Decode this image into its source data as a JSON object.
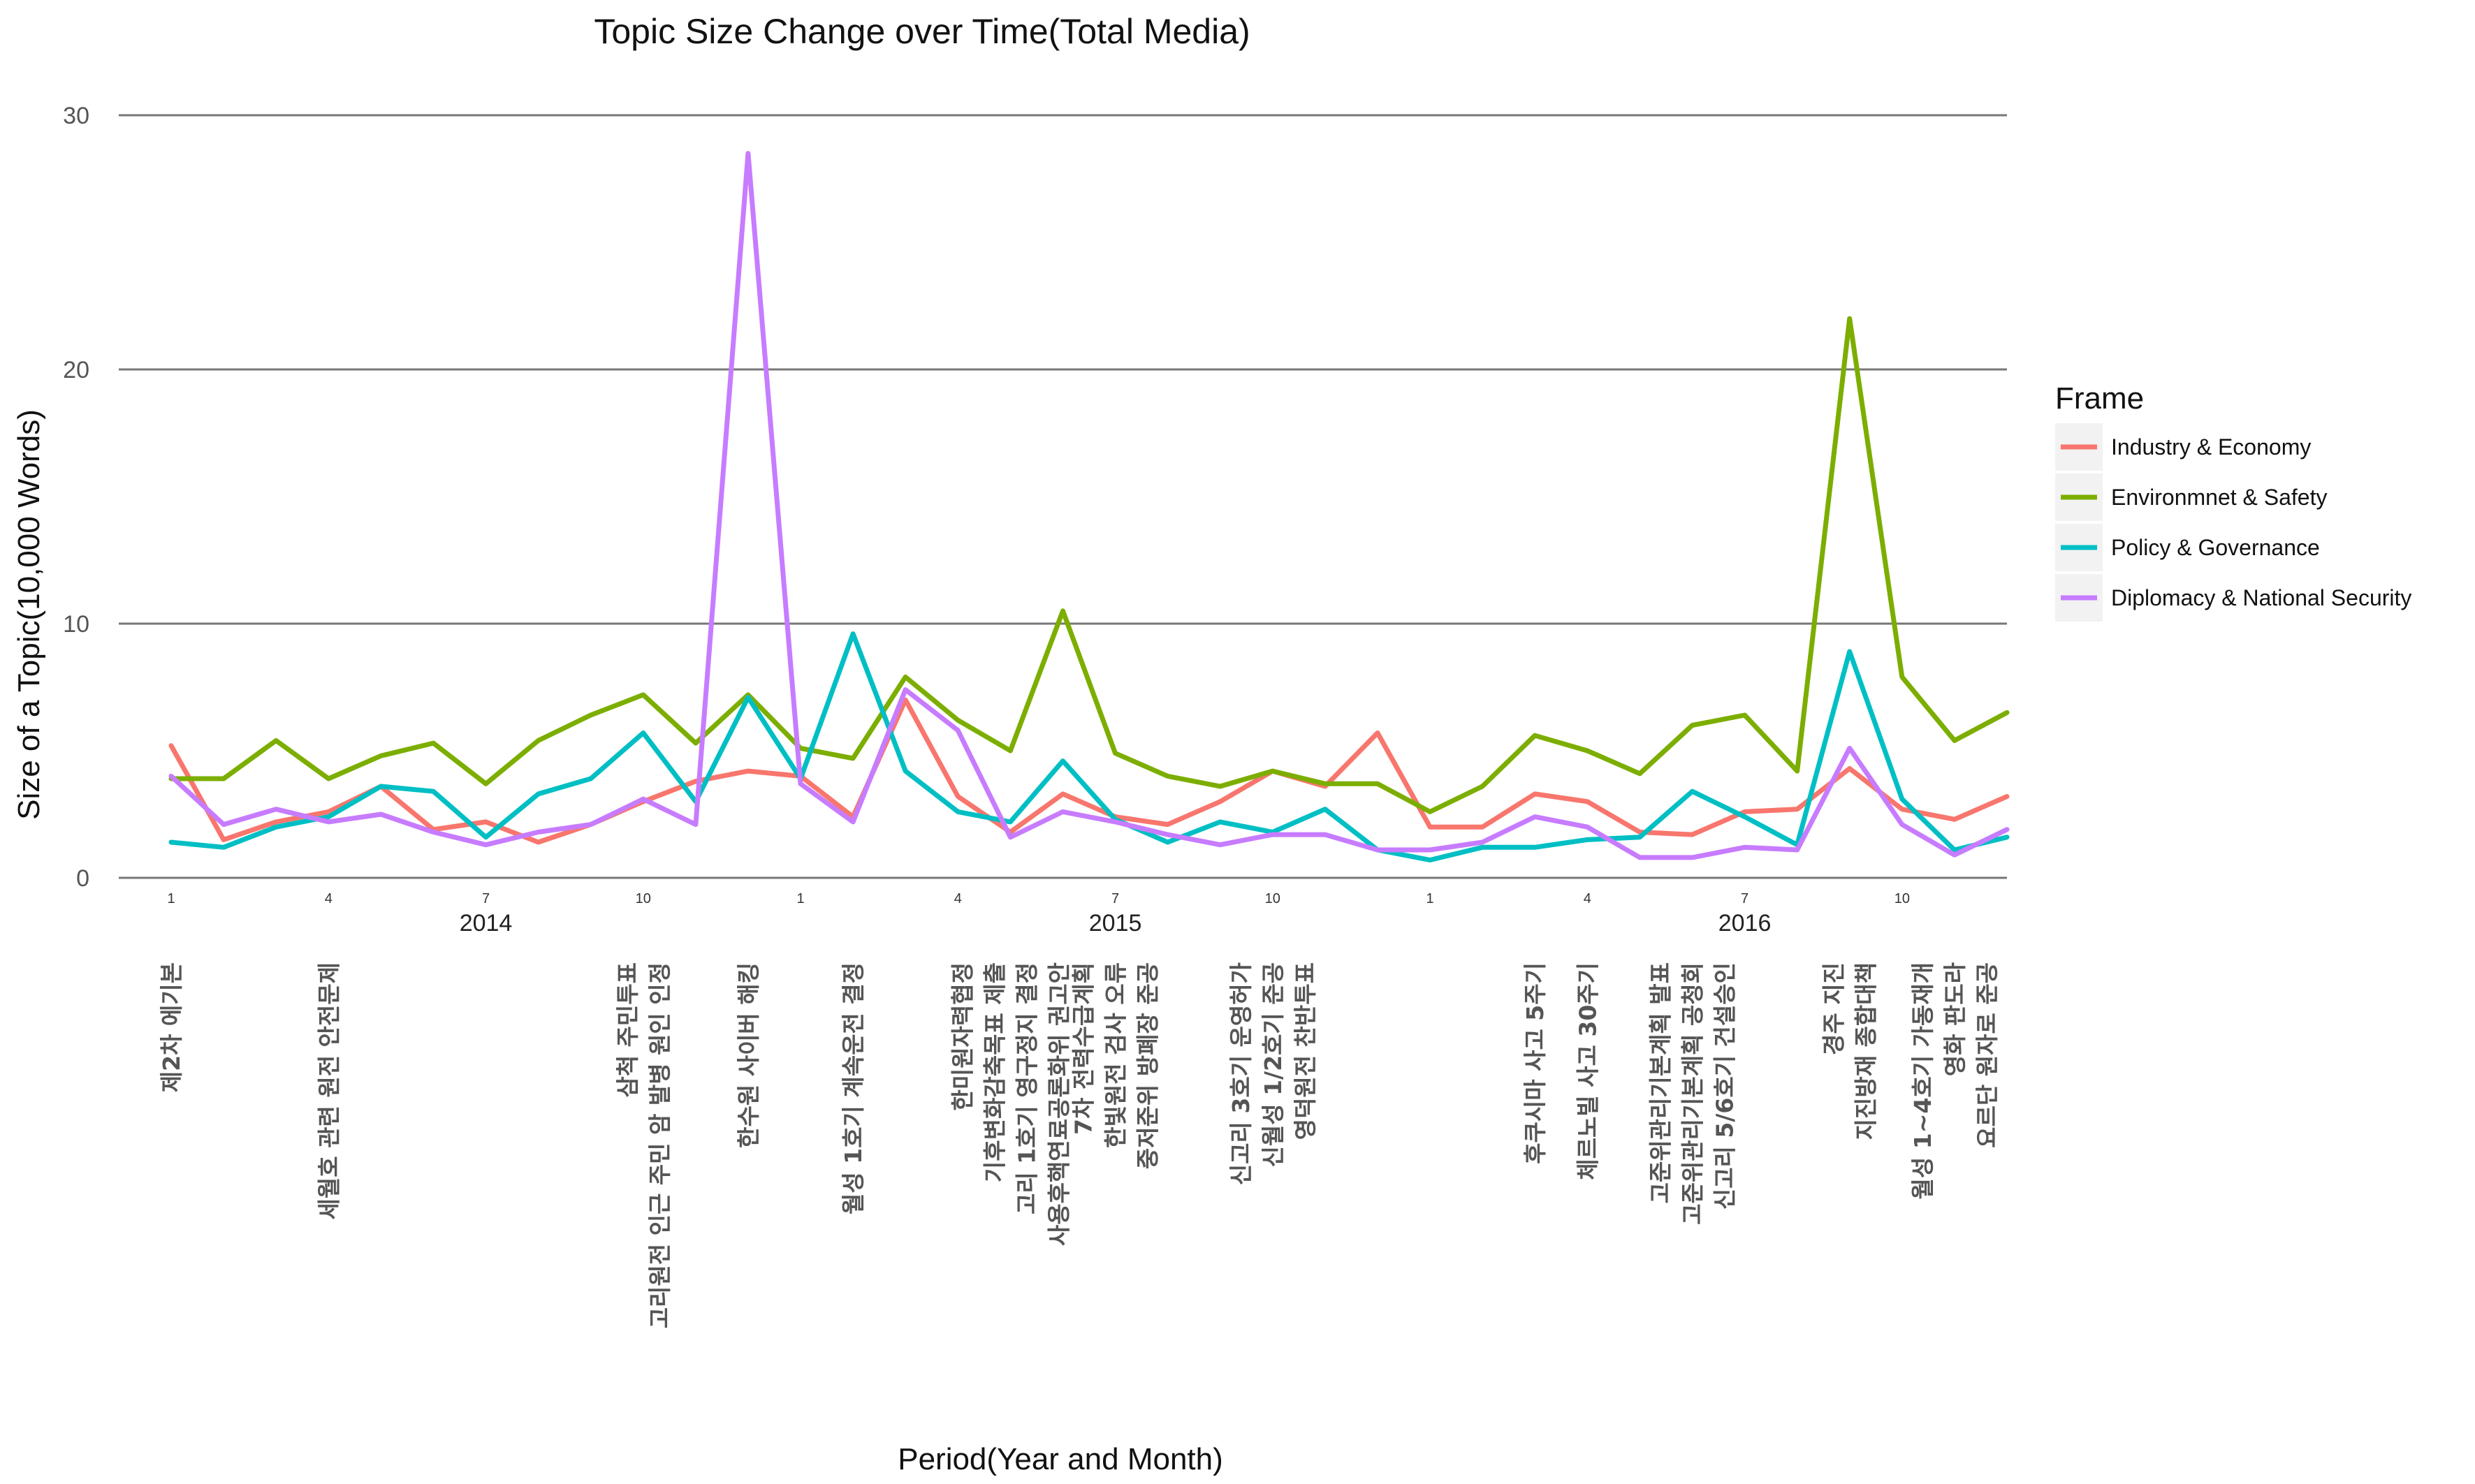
{
  "chart_data": {
    "type": "line",
    "title": "Topic Size Change over Time(Total Media)",
    "xlabel": "Period(Year and Month)",
    "ylabel": "Size of a Topic(10,000 Words)",
    "ylim": [
      0,
      30
    ],
    "yticks": [
      0,
      10,
      20,
      30
    ],
    "grid": "horizontal",
    "legend_position": "right",
    "legend_title": "Frame",
    "x": [
      "2014-01",
      "2014-02",
      "2014-03",
      "2014-04",
      "2014-05",
      "2014-06",
      "2014-07",
      "2014-08",
      "2014-09",
      "2014-10",
      "2014-11",
      "2014-12",
      "2015-01",
      "2015-02",
      "2015-03",
      "2015-04",
      "2015-05",
      "2015-06",
      "2015-07",
      "2015-08",
      "2015-09",
      "2015-10",
      "2015-11",
      "2015-12",
      "2016-01",
      "2016-02",
      "2016-03",
      "2016-04",
      "2016-05",
      "2016-06",
      "2016-07",
      "2016-08",
      "2016-09",
      "2016-10",
      "2016-11",
      "2016-12"
    ],
    "month_ticks": [
      {
        "x": "2014-01",
        "label": "1"
      },
      {
        "x": "2014-04",
        "label": "4"
      },
      {
        "x": "2014-07",
        "label": "7"
      },
      {
        "x": "2014-10",
        "label": "10"
      },
      {
        "x": "2015-01",
        "label": "1"
      },
      {
        "x": "2015-04",
        "label": "4"
      },
      {
        "x": "2015-07",
        "label": "7"
      },
      {
        "x": "2015-10",
        "label": "10"
      },
      {
        "x": "2016-01",
        "label": "1"
      },
      {
        "x": "2016-04",
        "label": "4"
      },
      {
        "x": "2016-07",
        "label": "7"
      },
      {
        "x": "2016-10",
        "label": "10"
      }
    ],
    "year_ticks": [
      {
        "x": "2014-07",
        "label": "2014"
      },
      {
        "x": "2015-07",
        "label": "2015"
      },
      {
        "x": "2016-07",
        "label": "2016"
      }
    ],
    "series": [
      {
        "name": "Industry & Economy",
        "color": "#F8766D",
        "values": [
          5.2,
          1.5,
          2.2,
          2.6,
          3.6,
          1.9,
          2.2,
          1.4,
          2.1,
          3.0,
          3.8,
          4.2,
          4.0,
          2.4,
          7.0,
          3.2,
          1.8,
          3.3,
          2.4,
          2.1,
          3.0,
          4.2,
          3.6,
          5.7,
          2.0,
          2.0,
          3.3,
          3.0,
          1.8,
          1.7,
          2.6,
          2.7,
          4.3,
          2.7,
          2.3,
          3.2
        ]
      },
      {
        "name": "Environmnet & Safety",
        "color": "#7CAE00",
        "values": [
          3.9,
          3.9,
          5.4,
          3.9,
          4.8,
          5.3,
          3.7,
          5.4,
          6.4,
          7.2,
          5.3,
          7.2,
          5.1,
          4.7,
          7.9,
          6.2,
          5.0,
          10.5,
          4.9,
          4.0,
          3.6,
          4.2,
          3.7,
          3.7,
          2.6,
          3.6,
          5.6,
          5.0,
          4.1,
          6.0,
          6.4,
          4.2,
          22.0,
          7.9,
          5.4,
          6.5
        ]
      },
      {
        "name": "Policy & Governance",
        "color": "#00BFC4",
        "values": [
          1.4,
          1.2,
          2.0,
          2.4,
          3.6,
          3.4,
          1.6,
          3.3,
          3.9,
          5.7,
          3.0,
          7.1,
          3.9,
          9.6,
          4.2,
          2.6,
          2.2,
          4.6,
          2.3,
          1.4,
          2.2,
          1.8,
          2.7,
          1.1,
          0.7,
          1.2,
          1.2,
          1.5,
          1.6,
          3.4,
          2.4,
          1.3,
          8.9,
          3.1,
          1.1,
          1.6
        ]
      },
      {
        "name": "Diplomacy & National Security",
        "color": "#C77CFF",
        "values": [
          4.0,
          2.1,
          2.7,
          2.2,
          2.5,
          1.8,
          1.3,
          1.8,
          2.1,
          3.1,
          2.1,
          28.5,
          3.7,
          2.2,
          7.4,
          5.8,
          1.6,
          2.6,
          2.2,
          1.7,
          1.3,
          1.7,
          1.7,
          1.1,
          1.1,
          1.4,
          2.4,
          2.0,
          0.8,
          0.8,
          1.2,
          1.1,
          5.1,
          2.1,
          0.9,
          1.9
        ]
      }
    ],
    "annotations": [
      {
        "x": "2014-01",
        "lines": [
          "제2차 에기본"
        ]
      },
      {
        "x": "2014-04",
        "lines": [
          "세월호 관련 원전 안전문제"
        ]
      },
      {
        "x": "2014-10",
        "lines": [
          "삼척 주민투표",
          "고리원전 인근 주민 암 발병 원인 인정"
        ]
      },
      {
        "x": "2014-12",
        "lines": [
          "한수원 사이버 해킹"
        ]
      },
      {
        "x": "2015-02",
        "lines": [
          "월성 1호기 계속운전 결정"
        ]
      },
      {
        "x": "2015-05",
        "lines": [
          "한미원자력협정",
          "기후변화감축목표 제출",
          "고리 1호기 영구정지 결정",
          "사용후핵연료공론화위 권고안"
        ]
      },
      {
        "x": "2015-07",
        "lines": [
          "7차 전력수급계획",
          "한빛원전 검사 오류",
          "중저준위 방폐장 준공"
        ]
      },
      {
        "x": "2015-10",
        "lines": [
          "신고리 3호기 운영허가",
          "신월성 1/2호기 준공",
          "영덕원전 찬반투표"
        ]
      },
      {
        "x": "2016-03",
        "lines": [
          "후쿠시마 사고 5주기"
        ]
      },
      {
        "x": "2016-04",
        "lines": [
          "체르노빌 사고 30주기"
        ]
      },
      {
        "x": "2016-06",
        "lines": [
          "고준위관리기본계획 발표",
          "고준위관리기본계획 공청회",
          "신고리 5/6호기 건설승인"
        ]
      },
      {
        "x": "2016-09",
        "lines": [
          "경주 지진",
          "지진방재 종합대책"
        ]
      },
      {
        "x": "2016-11",
        "lines": [
          "월성 1~4호기 가동재개",
          "영화 판도라",
          "요르단 원자로 준공"
        ]
      }
    ]
  }
}
